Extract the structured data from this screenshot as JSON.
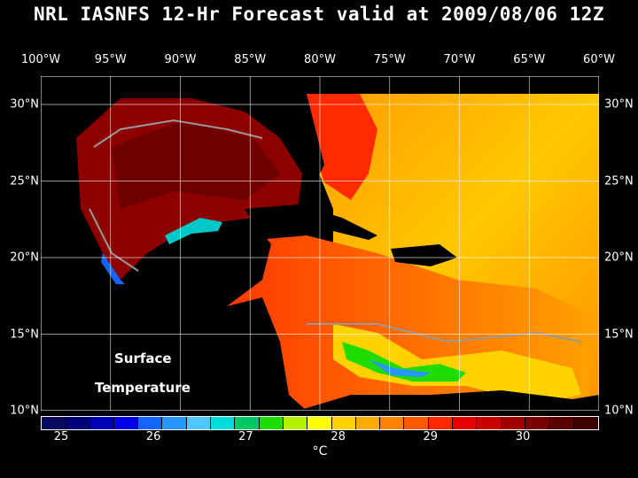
{
  "title": "NRL IASNFS  12-Hr Forecast valid at 2009/08/06 12Z",
  "lon_labels": [
    "100°W",
    "95°W",
    "90°W",
    "85°W",
    "80°W",
    "75°W",
    "70°W",
    "65°W",
    "60°W"
  ],
  "lat_labels": [
    "30°N",
    "25°N",
    "20°N",
    "15°N",
    "10°N"
  ],
  "map_labels": {
    "line1": "Surface",
    "line2": "Temperature"
  },
  "colorbar": {
    "ticks": [
      "25",
      "26",
      "27",
      "28",
      "29",
      "30"
    ],
    "units": "°C",
    "colors": [
      "#0a0a60",
      "#00007a",
      "#0000b4",
      "#0000e6",
      "#1464ff",
      "#2896ff",
      "#50c8ff",
      "#00dcdc",
      "#00c864",
      "#1edc00",
      "#b4f000",
      "#ffff00",
      "#ffd200",
      "#ffaa00",
      "#ff8200",
      "#ff5a00",
      "#ff2800",
      "#e60000",
      "#c80000",
      "#a00000",
      "#7a0000",
      "#5a0000",
      "#3c0000"
    ]
  },
  "colors": {
    "land": "#000000",
    "gulf": "#8c0000",
    "atlantic": "#ffb400"
  }
}
